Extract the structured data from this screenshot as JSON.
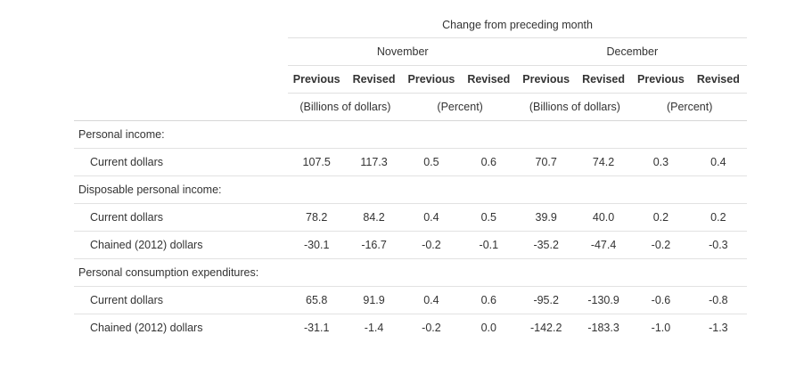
{
  "table": {
    "super_header": "Change from preceding month",
    "months": [
      "November",
      "December"
    ],
    "sub_headers": [
      "Previous",
      "Revised",
      "Previous",
      "Revised",
      "Previous",
      "Revised",
      "Previous",
      "Revised"
    ],
    "units": [
      "(Billions of dollars)",
      "(Percent)",
      "(Billions of dollars)",
      "(Percent)"
    ],
    "rows": [
      {
        "label": "Personal income:",
        "type": "section",
        "values": []
      },
      {
        "label": "Current dollars",
        "type": "data",
        "values": [
          "107.5",
          "117.3",
          "0.5",
          "0.6",
          "70.7",
          "74.2",
          "0.3",
          "0.4"
        ]
      },
      {
        "label": "Disposable personal income:",
        "type": "section",
        "values": []
      },
      {
        "label": "Current dollars",
        "type": "data",
        "values": [
          "78.2",
          "84.2",
          "0.4",
          "0.5",
          "39.9",
          "40.0",
          "0.2",
          "0.2"
        ]
      },
      {
        "label": "Chained (2012) dollars",
        "type": "data",
        "values": [
          "-30.1",
          "-16.7",
          "-0.2",
          "-0.1",
          "-35.2",
          "-47.4",
          "-0.2",
          "-0.3"
        ]
      },
      {
        "label": "Personal consumption expenditures:",
        "type": "section",
        "values": []
      },
      {
        "label": "Current dollars",
        "type": "data",
        "values": [
          "65.8",
          "91.9",
          "0.4",
          "0.6",
          "-95.2",
          "-130.9",
          "-0.6",
          "-0.8"
        ]
      },
      {
        "label": "Chained (2012) dollars",
        "type": "data",
        "values": [
          "-31.1",
          "-1.4",
          "-0.2",
          "0.0",
          "-142.2",
          "-183.3",
          "-1.0",
          "-1.3"
        ]
      }
    ]
  }
}
